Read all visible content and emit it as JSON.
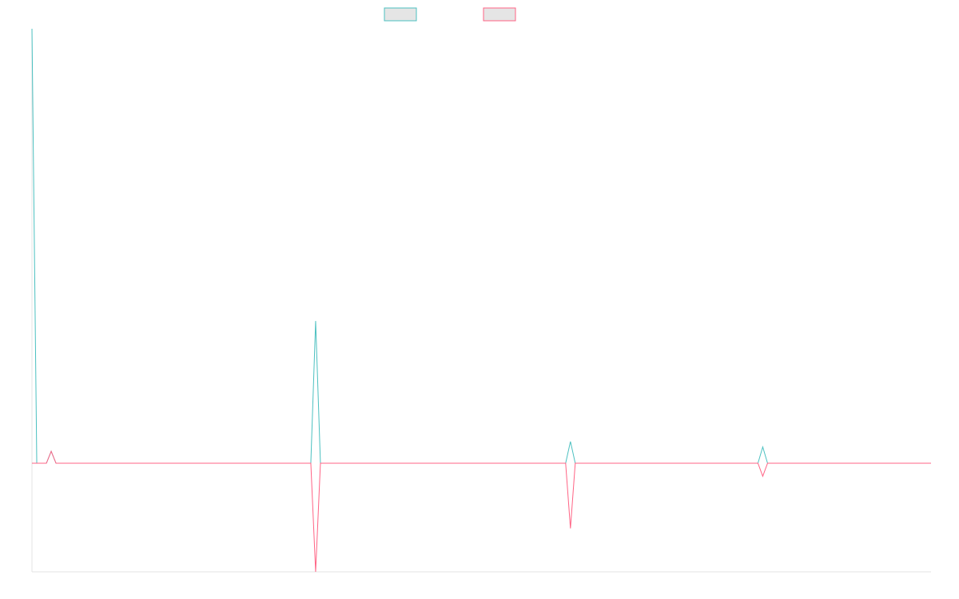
{
  "chart_data": {
    "type": "line",
    "title": "",
    "xlabel": "",
    "ylabel": "",
    "grid": false,
    "legend_position": "top",
    "n_points": 188,
    "ylim": [
      -1.0,
      4.0
    ],
    "series": [
      {
        "name": "",
        "color": "#4bc0c0",
        "fill": "#e5e5e5",
        "points": [
          {
            "x": 0,
            "y": 4.0
          },
          {
            "x": 1,
            "y": 0.0
          },
          {
            "x": 4,
            "y": 0.11
          },
          {
            "x": 59,
            "y": 1.31
          },
          {
            "x": 112,
            "y": 0.2
          },
          {
            "x": 152,
            "y": 0.15
          }
        ]
      },
      {
        "name": "",
        "color": "#ff6384",
        "fill": "#e5e5e5",
        "points": [
          {
            "x": 4,
            "y": 0.11
          },
          {
            "x": 59,
            "y": -1.0
          },
          {
            "x": 112,
            "y": -0.6
          },
          {
            "x": 152,
            "y": -0.12
          }
        ]
      }
    ]
  }
}
